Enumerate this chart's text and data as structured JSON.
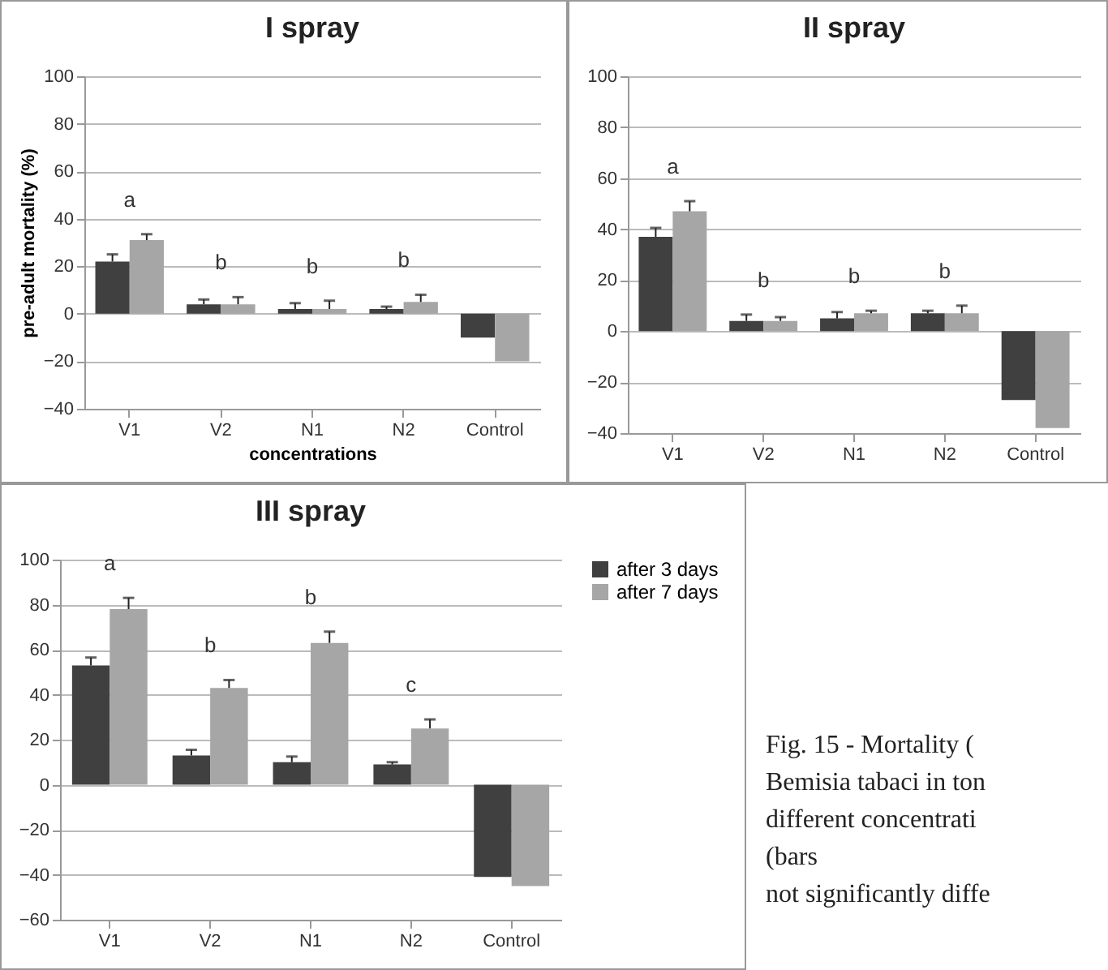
{
  "chart_data": [
    {
      "type": "bar",
      "title": "I spray",
      "ylabel": "pre-adult mortality (%)",
      "xlabel": "concentrations",
      "categories": [
        "V1",
        "V2",
        "N1",
        "N2",
        "Control"
      ],
      "series": [
        {
          "color": "#404040",
          "values": [
            22,
            4,
            2,
            2,
            -10
          ],
          "errors": [
            [
              22,
              25
            ],
            [
              4,
              6
            ],
            [
              2,
              4.5
            ],
            [
              2,
              3
            ],
            null
          ]
        },
        {
          "color": "#a6a6a6",
          "values": [
            31,
            4,
            2,
            5,
            -20
          ],
          "errors": [
            [
              31,
              33.5
            ],
            [
              4,
              7
            ],
            [
              2,
              5.5
            ],
            [
              5,
              8
            ],
            null
          ]
        }
      ],
      "ylim": [
        -40,
        100
      ],
      "yticks": [
        -40,
        -20,
        0,
        20,
        40,
        60,
        80,
        100
      ],
      "grid": "y",
      "annotations": [
        "a",
        "b",
        "b",
        "b"
      ]
    },
    {
      "type": "bar",
      "title": "II spray",
      "categories": [
        "V1",
        "V2",
        "N1",
        "N2",
        "Control"
      ],
      "series": [
        {
          "color": "#404040",
          "values": [
            37,
            4,
            5,
            7,
            -27
          ],
          "errors": [
            [
              37,
              40.5
            ],
            [
              4,
              6.5
            ],
            [
              5,
              7.5
            ],
            [
              7,
              8
            ],
            null
          ]
        },
        {
          "color": "#a6a6a6",
          "values": [
            47,
            4,
            7,
            7,
            -38
          ],
          "errors": [
            [
              47,
              51
            ],
            [
              4,
              5.5
            ],
            [
              7,
              8
            ],
            [
              7,
              10
            ],
            null
          ]
        }
      ],
      "ylim": [
        -40,
        100
      ],
      "yticks": [
        -40,
        -20,
        0,
        20,
        40,
        60,
        80,
        100
      ],
      "grid": "y",
      "annotations": [
        "a",
        "b",
        "b",
        "b"
      ]
    },
    {
      "type": "bar",
      "title": "III spray",
      "categories": [
        "V1",
        "V2",
        "N1",
        "N2",
        "Control"
      ],
      "series": [
        {
          "name": "after 3 days",
          "color": "#404040",
          "values": [
            53,
            13,
            10,
            9,
            -41
          ],
          "errors": [
            [
              53,
              56.5
            ],
            [
              13,
              15.5
            ],
            [
              10,
              12.5
            ],
            [
              9,
              10
            ],
            null
          ]
        },
        {
          "name": "after 7 days",
          "color": "#a6a6a6",
          "values": [
            78,
            43,
            63,
            25,
            -45
          ],
          "errors": [
            [
              78,
              83
            ],
            [
              43,
              46.5
            ],
            [
              63,
              68
            ],
            [
              25,
              29
            ],
            null
          ]
        }
      ],
      "ylim": [
        -60,
        100
      ],
      "yticks": [
        -60,
        -40,
        -20,
        0,
        20,
        40,
        60,
        80,
        100
      ],
      "grid": "y",
      "legend": "right",
      "annotations": [
        "a",
        "b",
        "b",
        "c"
      ]
    },
    {
      "type": "other",
      "annotations": [
        "Fig. 15 - Mortality (",
        "Bemisia tabaci in ton",
        "different concentrati",
        "(bars",
        "not significantly diffe"
      ]
    }
  ]
}
